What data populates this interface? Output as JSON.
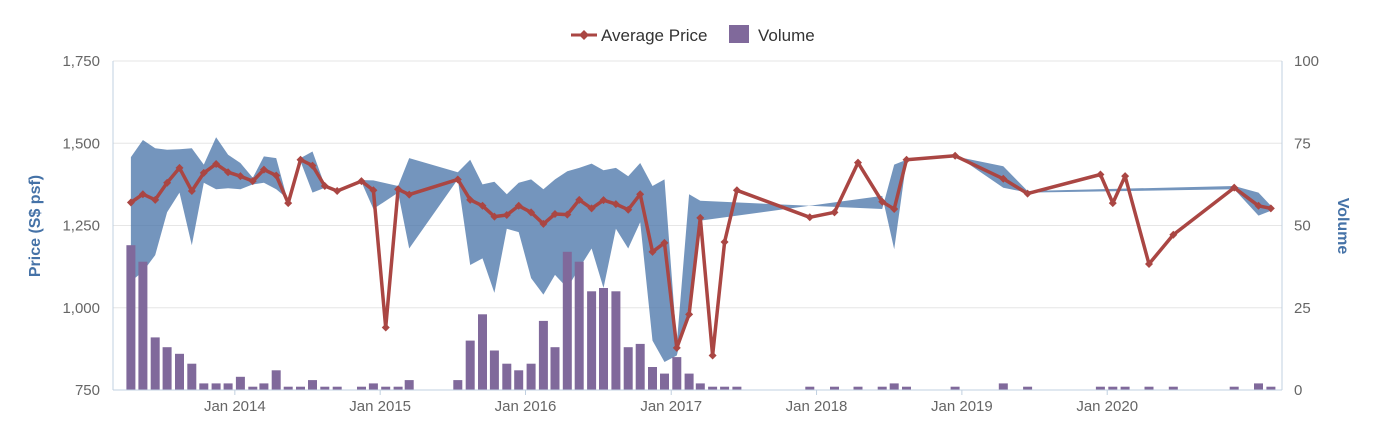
{
  "chart_data": {
    "type": "line",
    "legend": [
      {
        "label": "Average Price",
        "color": "#aa4643",
        "marker": "diamond-line"
      },
      {
        "label": "Volume",
        "color": "#80699b",
        "marker": "square"
      }
    ],
    "legend_position": "top-center",
    "y_left": {
      "title": "Price (S$ psf)",
      "range": [
        750,
        1750
      ],
      "ticks": [
        "750",
        "1,000",
        "1,250",
        "1,500",
        "1,750"
      ],
      "tick_values": [
        750,
        1000,
        1250,
        1500,
        1750
      ]
    },
    "y_right": {
      "title": "Volume",
      "range": [
        0,
        100
      ],
      "ticks": [
        "0",
        "25",
        "50",
        "75",
        "100"
      ],
      "tick_values": [
        0,
        25,
        50,
        75,
        100
      ]
    },
    "x_axis": {
      "type": "datetime",
      "range": [
        "2013-03-01",
        "2021-03-15"
      ],
      "ticks": [
        {
          "label": "Jan 2014",
          "date": "2014-01-01"
        },
        {
          "label": "Jan 2015",
          "date": "2015-01-01"
        },
        {
          "label": "Jan 2016",
          "date": "2016-01-01"
        },
        {
          "label": "Jan 2017",
          "date": "2017-01-01"
        },
        {
          "label": "Jan 2018",
          "date": "2018-01-01"
        },
        {
          "label": "Jan 2019",
          "date": "2019-01-01"
        },
        {
          "label": "Jan 2020",
          "date": "2020-01-01"
        }
      ]
    },
    "grid": {
      "horizontal": true,
      "vertical": false
    },
    "colors": {
      "price": "#aa4643",
      "volume": "#80699b",
      "range": "#4572a7",
      "grid": "#e6e6e6",
      "axis_title": "#4572a7"
    },
    "series": [
      {
        "name": "Average Price",
        "type": "line",
        "axis": "left",
        "points": [
          [
            "2013-04",
            1320
          ],
          [
            "2013-05",
            1345
          ],
          [
            "2013-06",
            1328
          ],
          [
            "2013-07",
            1380
          ],
          [
            "2013-08",
            1425
          ],
          [
            "2013-09",
            1355
          ],
          [
            "2013-10",
            1410
          ],
          [
            "2013-11",
            1437
          ],
          [
            "2013-12",
            1412
          ],
          [
            "2014-01",
            1400
          ],
          [
            "2014-02",
            1385
          ],
          [
            "2014-03",
            1420
          ],
          [
            "2014-04",
            1402
          ],
          [
            "2014-05",
            1318
          ],
          [
            "2014-06",
            1450
          ],
          [
            "2014-07",
            1432
          ],
          [
            "2014-08",
            1370
          ],
          [
            "2014-09",
            1355
          ],
          [
            "2014-11",
            1385
          ],
          [
            "2014-12",
            1357
          ],
          [
            "2015-01",
            940
          ],
          [
            "2015-02",
            1360
          ],
          [
            "2015-03",
            1344
          ],
          [
            "2015-07",
            1390
          ],
          [
            "2015-08",
            1328
          ],
          [
            "2015-09",
            1310
          ],
          [
            "2015-10",
            1277
          ],
          [
            "2015-11",
            1282
          ],
          [
            "2015-12",
            1310
          ],
          [
            "2016-01",
            1290
          ],
          [
            "2016-02",
            1255
          ],
          [
            "2016-03",
            1285
          ],
          [
            "2016-04",
            1283
          ],
          [
            "2016-05",
            1328
          ],
          [
            "2016-06",
            1302
          ],
          [
            "2016-07",
            1327
          ],
          [
            "2016-08",
            1315
          ],
          [
            "2016-09",
            1298
          ],
          [
            "2016-10",
            1345
          ],
          [
            "2016-11",
            1170
          ],
          [
            "2016-12",
            1197
          ],
          [
            "2017-01",
            878
          ],
          [
            "2017-02",
            980
          ],
          [
            "2017-03",
            1273
          ],
          [
            "2017-04",
            855
          ],
          [
            "2017-05",
            1200
          ],
          [
            "2017-06",
            1357
          ],
          [
            "2017-12",
            1275
          ],
          [
            "2018-02",
            1290
          ],
          [
            "2018-04",
            1441
          ],
          [
            "2018-06",
            1322
          ],
          [
            "2018-07",
            1300
          ],
          [
            "2018-08",
            1450
          ],
          [
            "2018-12",
            1462
          ],
          [
            "2019-04",
            1392
          ],
          [
            "2019-06",
            1347
          ],
          [
            "2019-12",
            1405
          ],
          [
            "2020-01",
            1318
          ],
          [
            "2020-02",
            1400
          ],
          [
            "2020-04",
            1133
          ],
          [
            "2020-06",
            1222
          ],
          [
            "2020-11",
            1365
          ],
          [
            "2021-01",
            1310
          ],
          [
            "2021-02",
            1302
          ]
        ]
      },
      {
        "name": "Range",
        "type": "arearange",
        "axis": "left",
        "points": [
          [
            "2013-04",
            1080,
            1458
          ],
          [
            "2013-05",
            1110,
            1510
          ],
          [
            "2013-06",
            1160,
            1485
          ],
          [
            "2013-07",
            1290,
            1480
          ],
          [
            "2013-08",
            1350,
            1482
          ],
          [
            "2013-09",
            1190,
            1485
          ],
          [
            "2013-10",
            1380,
            1435
          ],
          [
            "2013-11",
            1360,
            1518
          ],
          [
            "2013-12",
            1363,
            1465
          ],
          [
            "2014-01",
            1360,
            1440
          ],
          [
            "2014-02",
            1375,
            1395
          ],
          [
            "2014-03",
            1380,
            1460
          ],
          [
            "2014-04",
            1360,
            1455
          ],
          [
            "2014-05",
            1330,
            1320
          ],
          [
            "2014-06",
            1445,
            1455
          ],
          [
            "2014-07",
            1350,
            1475
          ],
          [
            "2014-08",
            1365,
            1372
          ],
          [
            "2014-09",
            1355,
            1358
          ],
          [
            "2014-11",
            1382,
            1388
          ],
          [
            "2014-12",
            1300,
            1387
          ],
          [
            "2015-02",
            1350,
            1370
          ],
          [
            "2015-03",
            1180,
            1455
          ],
          [
            "2015-07",
            1390,
            1412
          ],
          [
            "2015-08",
            1130,
            1450
          ],
          [
            "2015-09",
            1150,
            1375
          ],
          [
            "2015-10",
            1045,
            1383
          ],
          [
            "2015-11",
            1240,
            1345
          ],
          [
            "2015-12",
            1230,
            1380
          ],
          [
            "2016-01",
            1090,
            1390
          ],
          [
            "2016-02",
            1040,
            1360
          ],
          [
            "2016-03",
            1100,
            1390
          ],
          [
            "2016-04",
            1060,
            1415
          ],
          [
            "2016-05",
            1120,
            1425
          ],
          [
            "2016-06",
            1180,
            1438
          ],
          [
            "2016-07",
            1060,
            1418
          ],
          [
            "2016-08",
            1240,
            1425
          ],
          [
            "2016-09",
            1180,
            1400
          ],
          [
            "2016-10",
            1260,
            1440
          ],
          [
            "2016-11",
            900,
            1370
          ],
          [
            "2016-12",
            835,
            1390
          ],
          [
            "2017-01",
            855,
            890
          ],
          [
            "2017-02",
            1005,
            1345
          ],
          [
            "2017-03",
            1265,
            1325
          ],
          [
            "2018-06",
            1340,
            1300
          ],
          [
            "2018-07",
            1178,
            1435
          ],
          [
            "2018-08",
            1447,
            1450
          ],
          [
            "2018-12",
            1465,
            1460
          ],
          [
            "2019-04",
            1365,
            1430
          ],
          [
            "2019-06",
            1350,
            1355
          ],
          [
            "2020-11",
            1360,
            1370
          ],
          [
            "2021-01",
            1280,
            1350
          ],
          [
            "2021-02",
            1295,
            1310
          ]
        ]
      },
      {
        "name": "Volume",
        "type": "column",
        "axis": "right",
        "points": [
          [
            "2013-04",
            44
          ],
          [
            "2013-05",
            39
          ],
          [
            "2013-06",
            16
          ],
          [
            "2013-07",
            13
          ],
          [
            "2013-08",
            11
          ],
          [
            "2013-09",
            8
          ],
          [
            "2013-10",
            2
          ],
          [
            "2013-11",
            2
          ],
          [
            "2013-12",
            2
          ],
          [
            "2014-01",
            4
          ],
          [
            "2014-02",
            1
          ],
          [
            "2014-03",
            2
          ],
          [
            "2014-04",
            6
          ],
          [
            "2014-05",
            1
          ],
          [
            "2014-06",
            1
          ],
          [
            "2014-07",
            3
          ],
          [
            "2014-08",
            1
          ],
          [
            "2014-09",
            1
          ],
          [
            "2014-11",
            1
          ],
          [
            "2014-12",
            2
          ],
          [
            "2015-01",
            1
          ],
          [
            "2015-02",
            1
          ],
          [
            "2015-03",
            3
          ],
          [
            "2015-07",
            3
          ],
          [
            "2015-08",
            15
          ],
          [
            "2015-09",
            23
          ],
          [
            "2015-10",
            12
          ],
          [
            "2015-11",
            8
          ],
          [
            "2015-12",
            6
          ],
          [
            "2016-01",
            8
          ],
          [
            "2016-02",
            21
          ],
          [
            "2016-03",
            13
          ],
          [
            "2016-04",
            42
          ],
          [
            "2016-05",
            39
          ],
          [
            "2016-06",
            30
          ],
          [
            "2016-07",
            31
          ],
          [
            "2016-08",
            30
          ],
          [
            "2016-09",
            13
          ],
          [
            "2016-10",
            14
          ],
          [
            "2016-11",
            7
          ],
          [
            "2016-12",
            5
          ],
          [
            "2017-01",
            10
          ],
          [
            "2017-02",
            5
          ],
          [
            "2017-03",
            2
          ],
          [
            "2017-04",
            1
          ],
          [
            "2017-05",
            1
          ],
          [
            "2017-06",
            1
          ],
          [
            "2017-12",
            1
          ],
          [
            "2018-02",
            1
          ],
          [
            "2018-04",
            1
          ],
          [
            "2018-06",
            1
          ],
          [
            "2018-07",
            2
          ],
          [
            "2018-08",
            1
          ],
          [
            "2018-12",
            1
          ],
          [
            "2019-04",
            2
          ],
          [
            "2019-06",
            1
          ],
          [
            "2019-12",
            1
          ],
          [
            "2020-01",
            1
          ],
          [
            "2020-02",
            1
          ],
          [
            "2020-04",
            1
          ],
          [
            "2020-06",
            1
          ],
          [
            "2020-11",
            1
          ],
          [
            "2021-01",
            2
          ],
          [
            "2021-02",
            1
          ]
        ]
      }
    ]
  }
}
